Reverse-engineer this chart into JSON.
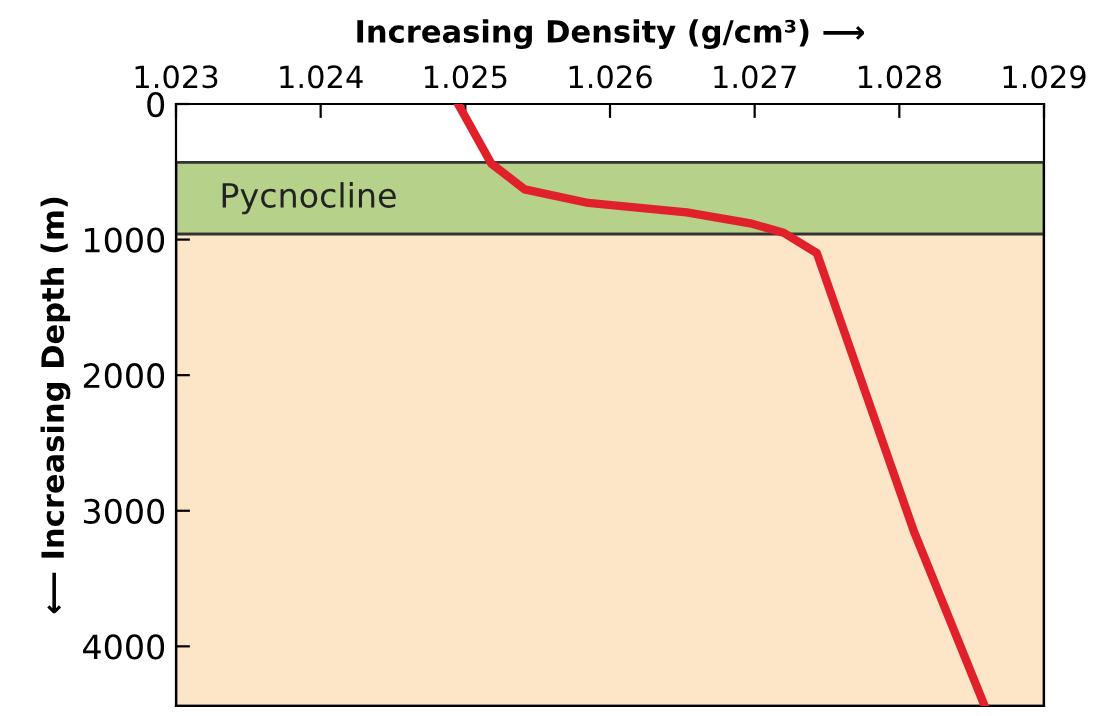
{
  "chart_data": {
    "type": "line",
    "xlabel": "Increasing Density (g/cm³) ⟶",
    "ylabel": "⟵ Increasing Depth (m)",
    "x": [
      1.02495,
      1.02518,
      1.02541,
      1.02585,
      1.02653,
      1.02697,
      1.0272,
      1.02743,
      1.0281,
      1.02859
    ],
    "series": [
      {
        "color": "#e0202a",
        "values": [
          0,
          440,
          630,
          730,
          800,
          880,
          950,
          1100,
          3150,
          4440
        ]
      }
    ],
    "xlim": [
      1.023,
      1.029
    ],
    "xticks": [
      1.023,
      1.024,
      1.025,
      1.026,
      1.027,
      1.028,
      1.029
    ],
    "ylim": [
      4440,
      0
    ],
    "yticks": [
      0,
      1000,
      2000,
      3000,
      4000
    ],
    "bands": [
      {
        "axis": "y",
        "from": 430,
        "to": 960,
        "label": "Pycnocline",
        "color": "#b5d18a"
      },
      {
        "axis": "y",
        "from": 960,
        "to": 4440,
        "label": null,
        "color": "#fde6c8"
      }
    ],
    "grid": false,
    "legend": false,
    "marker": "none",
    "line_style": "solid"
  }
}
